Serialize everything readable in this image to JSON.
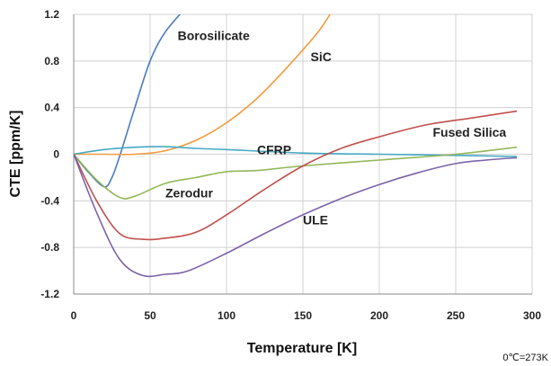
{
  "chart_data": {
    "type": "line",
    "xlabel": "Temperature [K]",
    "ylabel": "CTE [ppm/K]",
    "xlim": [
      0,
      300
    ],
    "ylim": [
      -1.2,
      1.2
    ],
    "x_ticks": [
      "0",
      "50",
      "100",
      "150",
      "200",
      "250",
      "300"
    ],
    "y_ticks": [
      "1.2",
      "0.8",
      "0.4",
      "0",
      "-0.4",
      "-0.8",
      "-1.2"
    ],
    "grid": true,
    "note": "0℃=273K",
    "series": [
      {
        "name": "Borosilicate",
        "color": "#4a7bc4",
        "points": [
          [
            0,
            0
          ],
          [
            10,
            -0.16
          ],
          [
            20,
            -0.28
          ],
          [
            25,
            -0.2
          ],
          [
            30,
            -0.02
          ],
          [
            40,
            0.4
          ],
          [
            50,
            0.8
          ],
          [
            60,
            1.05
          ],
          [
            75,
            1.28
          ]
        ]
      },
      {
        "name": "SiC",
        "color": "#f39a3c",
        "points": [
          [
            0,
            0
          ],
          [
            20,
            0.0
          ],
          [
            40,
            0.0
          ],
          [
            60,
            0.03
          ],
          [
            80,
            0.12
          ],
          [
            100,
            0.27
          ],
          [
            120,
            0.48
          ],
          [
            140,
            0.75
          ],
          [
            160,
            1.05
          ],
          [
            170,
            1.25
          ]
        ]
      },
      {
        "name": "CFRP",
        "color": "#45a9c4",
        "points": [
          [
            0,
            0
          ],
          [
            20,
            0.04
          ],
          [
            40,
            0.06
          ],
          [
            60,
            0.065
          ],
          [
            80,
            0.05
          ],
          [
            100,
            0.04
          ],
          [
            150,
            0.01
          ],
          [
            200,
            0.0
          ],
          [
            250,
            -0.01
          ],
          [
            290,
            -0.02
          ]
        ]
      },
      {
        "name": "Zerodur",
        "color": "#93b85a",
        "points": [
          [
            0,
            0
          ],
          [
            15,
            -0.22
          ],
          [
            30,
            -0.37
          ],
          [
            40,
            -0.36
          ],
          [
            60,
            -0.25
          ],
          [
            80,
            -0.2
          ],
          [
            100,
            -0.15
          ],
          [
            120,
            -0.14
          ],
          [
            150,
            -0.1
          ],
          [
            200,
            -0.05
          ],
          [
            250,
            0.0
          ],
          [
            290,
            0.06
          ]
        ]
      },
      {
        "name": "Fused Silica",
        "color": "#c0504d",
        "points": [
          [
            0,
            0
          ],
          [
            15,
            -0.4
          ],
          [
            30,
            -0.68
          ],
          [
            45,
            -0.73
          ],
          [
            60,
            -0.72
          ],
          [
            80,
            -0.67
          ],
          [
            100,
            -0.52
          ],
          [
            125,
            -0.3
          ],
          [
            150,
            -0.1
          ],
          [
            175,
            0.05
          ],
          [
            200,
            0.15
          ],
          [
            230,
            0.25
          ],
          [
            260,
            0.31
          ],
          [
            290,
            0.37
          ]
        ]
      },
      {
        "name": "ULE",
        "color": "#7b63a8",
        "points": [
          [
            0,
            0
          ],
          [
            15,
            -0.5
          ],
          [
            30,
            -0.9
          ],
          [
            45,
            -1.04
          ],
          [
            60,
            -1.03
          ],
          [
            75,
            -1.0
          ],
          [
            100,
            -0.85
          ],
          [
            125,
            -0.68
          ],
          [
            150,
            -0.52
          ],
          [
            175,
            -0.38
          ],
          [
            200,
            -0.26
          ],
          [
            225,
            -0.16
          ],
          [
            250,
            -0.08
          ],
          [
            270,
            -0.05
          ],
          [
            290,
            -0.03
          ]
        ]
      }
    ],
    "annotations": [
      {
        "text": "Borosilicate",
        "x": 68,
        "y": 0.98
      },
      {
        "text": "SiC",
        "x": 155,
        "y": 0.8
      },
      {
        "text": "CFRP",
        "x": 120,
        "y": 0.0
      },
      {
        "text": "Zerodur",
        "x": 60,
        "y": -0.37
      },
      {
        "text": "Fused Silica",
        "x": 235,
        "y": 0.15
      },
      {
        "text": "ULE",
        "x": 150,
        "y": -0.6
      }
    ]
  }
}
